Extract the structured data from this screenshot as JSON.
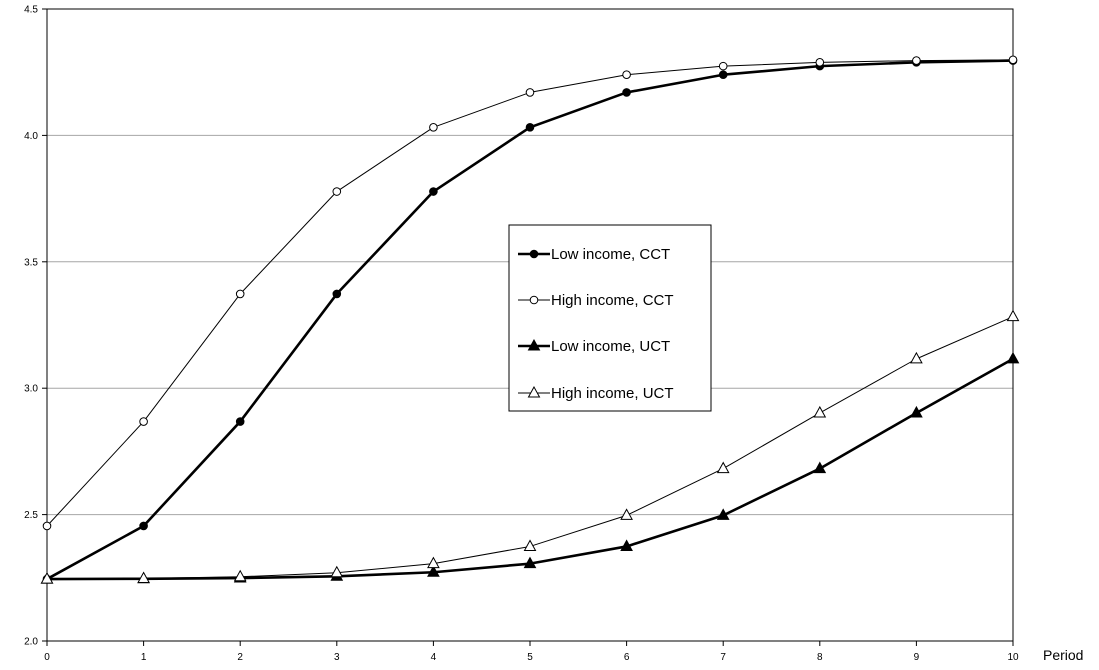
{
  "chart_data": {
    "type": "line",
    "title": "",
    "xlabel": "Period",
    "ylabel": "",
    "x": [
      0,
      1,
      2,
      3,
      4,
      5,
      6,
      7,
      8,
      9,
      10
    ],
    "xlim": [
      0,
      10
    ],
    "ylim": [
      2.0,
      4.5
    ],
    "yticks": [
      "2.0",
      "2.5",
      "3.0",
      "3.5",
      "4.0",
      "4.5"
    ],
    "xticks": [
      "0",
      "1",
      "2",
      "3",
      "4",
      "5",
      "6",
      "7",
      "8",
      "9",
      "10"
    ],
    "grid": "horizontal",
    "legend_position": "center-right",
    "series": [
      {
        "name": "Low income, CCT",
        "marker": "filled-circle",
        "line": "thick",
        "values": [
          2.245,
          2.455,
          2.868,
          3.373,
          3.778,
          4.032,
          4.17,
          4.24,
          4.274,
          4.289,
          4.296
        ]
      },
      {
        "name": "High income, CCT",
        "marker": "open-circle",
        "line": "thin",
        "values": [
          2.455,
          2.868,
          3.373,
          3.778,
          4.032,
          4.17,
          4.24,
          4.274,
          4.289,
          4.296,
          4.299
        ]
      },
      {
        "name": "Low income, UCT",
        "marker": "filled-triangle",
        "line": "thick",
        "values": [
          2.245,
          2.246,
          2.249,
          2.256,
          2.272,
          2.306,
          2.374,
          2.497,
          2.682,
          2.902,
          3.116
        ]
      },
      {
        "name": "High income, UCT",
        "marker": "open-triangle",
        "line": "thin",
        "values": [
          2.245,
          2.247,
          2.254,
          2.27,
          2.306,
          2.374,
          2.497,
          2.682,
          2.902,
          3.116,
          3.283
        ]
      }
    ]
  }
}
